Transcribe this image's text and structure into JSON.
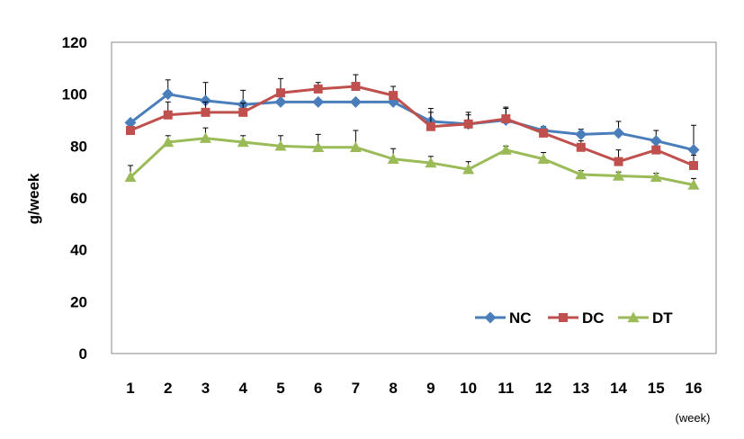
{
  "chart_data": {
    "type": "line",
    "title": "",
    "xlabel": "(week)",
    "ylabel": "g/week",
    "x": [
      1,
      2,
      3,
      4,
      5,
      6,
      7,
      8,
      9,
      10,
      11,
      12,
      13,
      14,
      15,
      16
    ],
    "x_tick_labels": [
      "1",
      "2",
      "3",
      "4",
      "5",
      "6",
      "7",
      "8",
      "9",
      "10",
      "11",
      "12",
      "13",
      "14",
      "15",
      "16"
    ],
    "ylim": [
      0,
      120
    ],
    "y_ticks": [
      0,
      20,
      40,
      60,
      80,
      100,
      120
    ],
    "y_tick_labels": [
      "0",
      "20",
      "40",
      "60",
      "80",
      "100",
      "120"
    ],
    "grid": false,
    "legend_position": "bottom-right",
    "series": [
      {
        "name": "NC",
        "color": "#4a7ebb",
        "marker": "diamond",
        "values": [
          89,
          100,
          97.5,
          96,
          97,
          97,
          97,
          97,
          89.5,
          88.5,
          90,
          86,
          84.5,
          85,
          82,
          78.5
        ],
        "error": [
          0,
          5.5,
          7,
          5.5,
          0,
          0,
          0,
          0,
          5,
          4.5,
          4.5,
          1.5,
          2,
          4.5,
          4,
          9.5
        ]
      },
      {
        "name": "DC",
        "color": "#c0504d",
        "marker": "square",
        "values": [
          86,
          92,
          93,
          93,
          100.5,
          102,
          103,
          99.5,
          87.5,
          88.5,
          90.5,
          85,
          79.5,
          74,
          78.5,
          72.5
        ],
        "error": [
          0,
          5,
          4,
          3.5,
          5.5,
          2.5,
          4.5,
          3.5,
          5.5,
          3.5,
          4.5,
          1.5,
          2.5,
          4.5,
          1.5,
          4
        ]
      },
      {
        "name": "DT",
        "color": "#9bbb59",
        "marker": "triangle",
        "values": [
          68,
          81.5,
          83,
          81.5,
          80,
          79.5,
          79.5,
          75,
          73.5,
          71,
          78.5,
          75,
          69,
          68.5,
          68,
          65
        ],
        "error": [
          4.5,
          2.5,
          4,
          2.5,
          4,
          5,
          6.5,
          4,
          2.5,
          3,
          1.5,
          2.5,
          1.5,
          1.5,
          1.5,
          2.5
        ]
      }
    ]
  }
}
